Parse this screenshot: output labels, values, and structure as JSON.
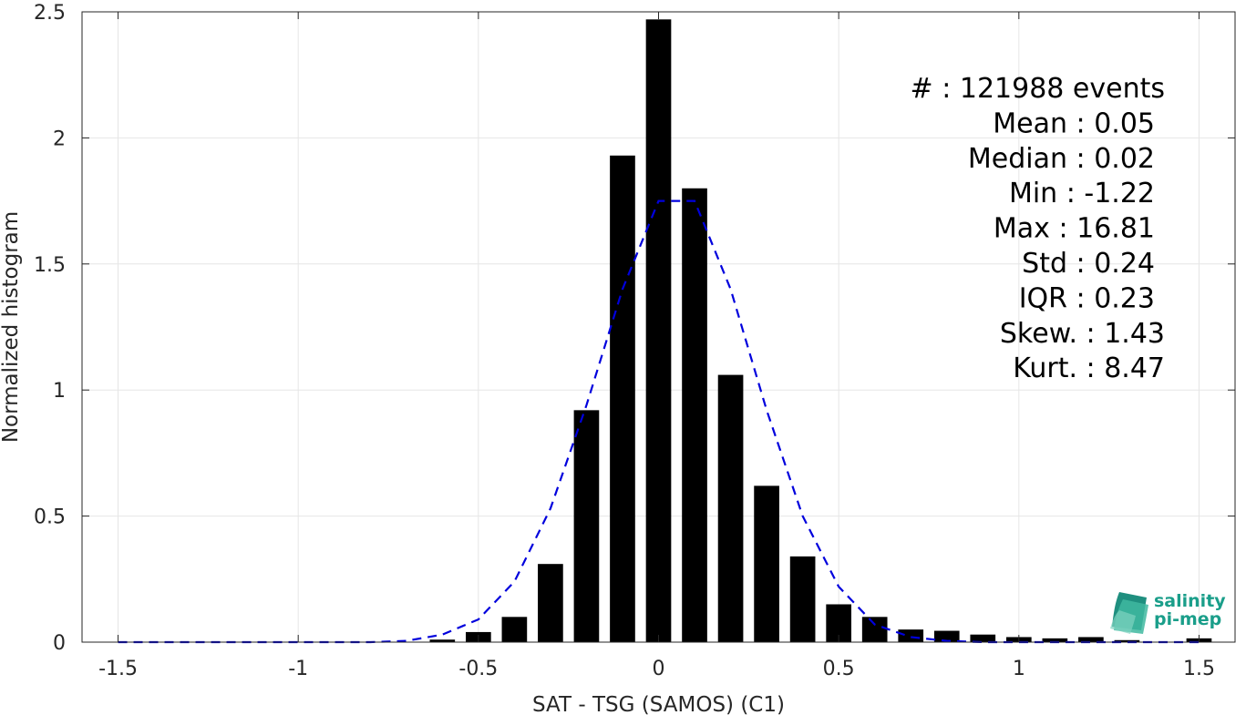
{
  "chart_data": {
    "type": "bar",
    "xlabel": "SAT - TSG (SAMOS) (C1)",
    "ylabel": "Normalized histogram",
    "xlim": [
      -1.6,
      1.6
    ],
    "ylim": [
      0,
      2.5
    ],
    "grid": true,
    "x_ticks": [
      -1.5,
      -1,
      -0.5,
      0,
      0.5,
      1,
      1.5
    ],
    "x_tick_labels": [
      "-1.5",
      "-1",
      "-0.5",
      "0",
      "0.5",
      "1",
      "1.5"
    ],
    "y_ticks": [
      0,
      0.5,
      1,
      1.5,
      2,
      2.5
    ],
    "y_tick_labels": [
      "0",
      "0.5",
      "1",
      "1.5",
      "2",
      "2.5"
    ],
    "bar_width": 0.07,
    "series": [
      {
        "kind": "bar",
        "color": "#000000",
        "x": [
          -0.6,
          -0.5,
          -0.4,
          -0.3,
          -0.2,
          -0.1,
          0.0,
          0.1,
          0.2,
          0.3,
          0.4,
          0.5,
          0.6,
          0.7,
          0.8,
          0.9,
          1.0,
          1.1,
          1.2,
          1.3,
          1.5
        ],
        "values": [
          0.01,
          0.04,
          0.1,
          0.31,
          0.92,
          1.93,
          2.47,
          1.8,
          1.06,
          0.62,
          0.34,
          0.15,
          0.1,
          0.05,
          0.045,
          0.03,
          0.02,
          0.015,
          0.02,
          0.008,
          0.015
        ]
      },
      {
        "kind": "line",
        "style": "dashed",
        "color": "#0000dd",
        "x": [
          -1.5,
          -1.4,
          -1.3,
          -1.2,
          -1.1,
          -1.0,
          -0.9,
          -0.8,
          -0.7,
          -0.6,
          -0.5,
          -0.4,
          -0.3,
          -0.2,
          -0.1,
          0.0,
          0.1,
          0.2,
          0.3,
          0.4,
          0.5,
          0.6,
          0.7,
          0.8,
          0.9,
          1.0,
          1.1,
          1.2,
          1.3,
          1.4,
          1.5
        ],
        "values": [
          0,
          0,
          0,
          0,
          0,
          0,
          0,
          0,
          0.005,
          0.03,
          0.09,
          0.24,
          0.53,
          0.94,
          1.4,
          1.75,
          1.75,
          1.4,
          0.92,
          0.5,
          0.22,
          0.07,
          0.02,
          0.005,
          0,
          0,
          0,
          0,
          0,
          0,
          0
        ]
      }
    ],
    "annotations": [
      "#  : 121988 events",
      "Mean : 0.05",
      "Median : 0.02",
      "Min : -1.22",
      "Max : 16.81",
      "Std : 0.24",
      "IQR : 0.23",
      "Skew. : 1.43",
      "Kurt. : 8.47"
    ]
  },
  "logo": {
    "line1": "salinity",
    "line2": "pi-mep",
    "text_color": "#1a9e8a"
  }
}
